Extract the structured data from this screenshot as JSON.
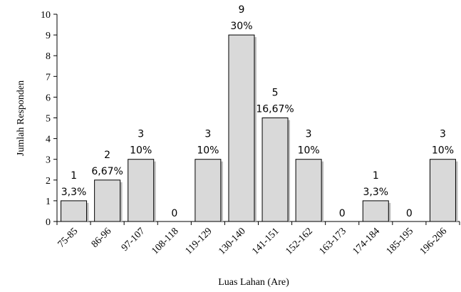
{
  "chart_data": {
    "type": "bar",
    "xlabel": "Luas Lahan (Are)",
    "ylabel": "Jumlah Responden",
    "ylim": [
      0,
      10
    ],
    "yticks": [
      "0",
      "1",
      "2",
      "3",
      "4",
      "5",
      "6",
      "7",
      "8",
      "9",
      "10"
    ],
    "categories": [
      "75-85",
      "86-96",
      "97-107",
      "108-118",
      "119-129",
      "130-140",
      "141-151",
      "152-162",
      "163-173",
      "174-184",
      "185-195",
      "196-206"
    ],
    "values": [
      1,
      2,
      3,
      0,
      3,
      9,
      5,
      3,
      0,
      1,
      0,
      3
    ],
    "count_labels": [
      "1",
      "2",
      "3",
      "0",
      "3",
      "9",
      "5",
      "3",
      "0",
      "1",
      "0",
      "3"
    ],
    "percent_labels": [
      "3,3%",
      "6,67%",
      "10%",
      "",
      "10%",
      "30%",
      "16,67%",
      "10%",
      "",
      "3,3%",
      "",
      "10%"
    ],
    "grid": false,
    "colors": {
      "bar_fill": "#d9d9d9",
      "bar_stroke": "#000000",
      "shadow": "#bdbdbd"
    }
  }
}
